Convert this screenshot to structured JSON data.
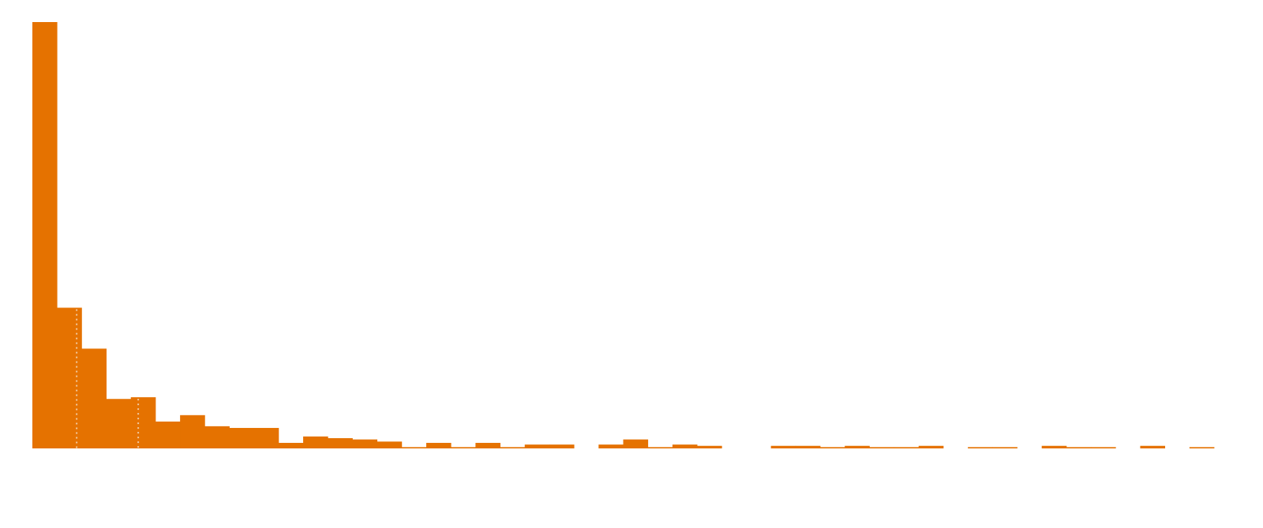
{
  "chart_data": {
    "type": "bar",
    "title": "",
    "xlabel": "",
    "ylabel": "",
    "grid": false,
    "bar_color": "#e57200",
    "marker_color": "#f1c9a0",
    "ylim": [
      0,
      100
    ],
    "bin_count": 48,
    "values": [
      100,
      33,
      23.4,
      11.6,
      12,
      6.3,
      7.8,
      5.2,
      4.8,
      4.8,
      1.3,
      2.8,
      2.4,
      2.1,
      1.6,
      0.3,
      1.3,
      0.3,
      1.3,
      0.3,
      0.9,
      0.9,
      0,
      0.9,
      2.1,
      0.3,
      0.9,
      0.6,
      0,
      0,
      0.6,
      0.6,
      0.3,
      0.6,
      0.3,
      0.3,
      0.6,
      0,
      0.3,
      0.3,
      0,
      0.6,
      0.3,
      0.3,
      0,
      0.6,
      0,
      0.3
    ],
    "reference_lines": [
      1.8,
      4.3
    ]
  }
}
